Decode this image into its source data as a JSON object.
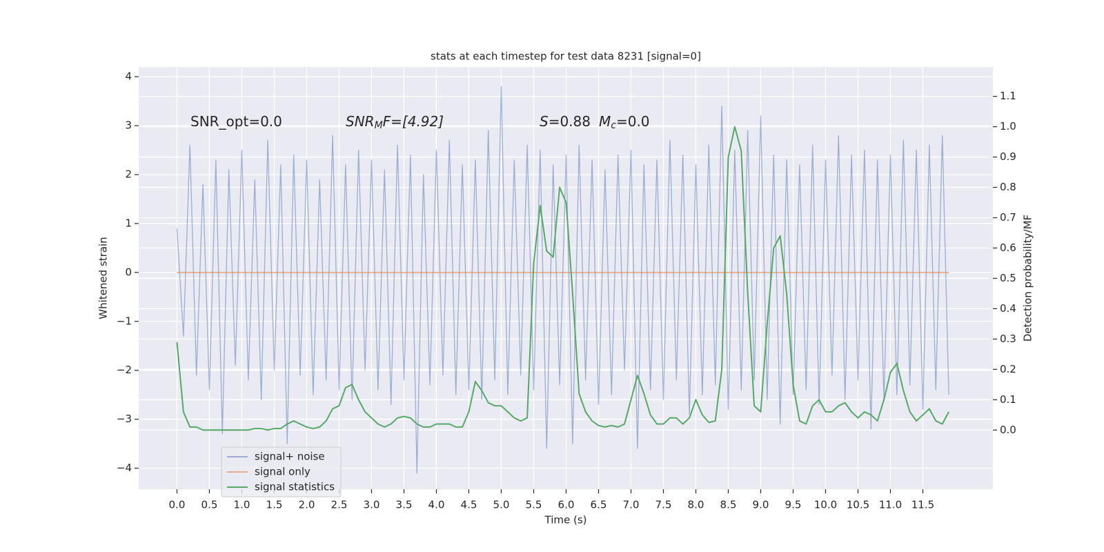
{
  "chart_data": {
    "type": "line",
    "title": "stats at each timestep for test data 8231 [signal=0]",
    "xlabel": "Time (s)",
    "ylabel": "Whitened strain",
    "y2label": "Detection probability/MF",
    "annotations": [
      [
        "SNR_opt=0.0"
      ],
      [
        "SNR",
        "M",
        "F=[4.92]"
      ],
      [
        "S",
        "=0.88",
        "M",
        "c",
        "=0.0"
      ]
    ],
    "x": [
      0,
      0.1,
      0.2,
      0.3,
      0.4,
      0.5,
      0.6,
      0.7,
      0.8,
      0.9,
      1,
      1.1,
      1.2,
      1.3,
      1.4,
      1.5,
      1.6,
      1.7,
      1.8,
      1.9,
      2,
      2.1,
      2.2,
      2.3,
      2.4,
      2.5,
      2.6,
      2.7,
      2.8,
      2.9,
      3,
      3.1,
      3.2,
      3.3,
      3.4,
      3.5,
      3.6,
      3.7,
      3.8,
      3.9,
      4,
      4.1,
      4.2,
      4.3,
      4.4,
      4.5,
      4.6,
      4.7,
      4.8,
      4.9,
      5,
      5.1,
      5.2,
      5.3,
      5.4,
      5.5,
      5.6,
      5.7,
      5.8,
      5.9,
      6,
      6.1,
      6.2,
      6.3,
      6.4,
      6.5,
      6.6,
      6.7,
      6.8,
      6.9,
      7,
      7.1,
      7.2,
      7.3,
      7.4,
      7.5,
      7.6,
      7.7,
      7.8,
      7.9,
      8,
      8.1,
      8.2,
      8.3,
      8.4,
      8.5,
      8.6,
      8.7,
      8.8,
      8.9,
      9,
      9.1,
      9.2,
      9.3,
      9.4,
      9.5,
      9.6,
      9.7,
      9.8,
      9.9,
      10,
      10.1,
      10.2,
      10.3,
      10.4,
      10.5,
      10.6,
      10.7,
      10.8,
      10.9,
      11,
      11.1,
      11.2,
      11.3,
      11.4,
      11.5,
      11.6,
      11.7,
      11.8,
      11.9
    ],
    "series": [
      {
        "name": "signal+ noise",
        "color": "#4c72b0",
        "values": [
          0.9,
          -1.3,
          2.6,
          -2.1,
          1.8,
          -2.4,
          2.3,
          -3.3,
          2.1,
          -1.9,
          2.5,
          -2.2,
          1.9,
          -2.6,
          2.7,
          -2.0,
          2.2,
          -3.5,
          2.4,
          -2.1,
          2.3,
          -2.5,
          1.9,
          -2.2,
          2.8,
          -2.4,
          2.2,
          -2.6,
          2.5,
          -2.0,
          2.3,
          -2.4,
          2.1,
          -2.7,
          2.6,
          -2.2,
          2.4,
          -4.1,
          2.0,
          -2.3,
          2.5,
          -2.1,
          2.7,
          -2.5,
          2.2,
          -2.4,
          2.3,
          -2.6,
          2.9,
          -2.2,
          3.8,
          -2.5,
          2.3,
          -2.1,
          2.6,
          -2.4,
          2.5,
          -3.6,
          2.2,
          -2.3,
          2.4,
          -3.5,
          2.6,
          -2.2,
          2.3,
          -2.7,
          2.1,
          -2.5,
          2.4,
          -2.0,
          2.5,
          -3.6,
          2.2,
          -2.4,
          2.3,
          -2.6,
          2.7,
          -2.2,
          2.4,
          -2.9,
          2.2,
          -2.5,
          2.6,
          -2.3,
          3.4,
          -2.8,
          2.5,
          -2.4,
          2.9,
          -2.2,
          3.2,
          -2.6,
          2.4,
          -3.1,
          2.3,
          -2.5,
          2.2,
          -2.4,
          2.6,
          -2.7,
          2.3,
          -2.1,
          2.8,
          -2.6,
          2.4,
          -2.2,
          2.5,
          -3.2,
          2.3,
          -2.6,
          2.4,
          -2.5,
          2.7,
          -2.3,
          2.5,
          -2.8,
          2.6,
          -2.4,
          2.8,
          -2.5
        ]
      },
      {
        "name": "signal only",
        "color": "#dd8452",
        "values": [
          0,
          0,
          0,
          0,
          0,
          0,
          0,
          0,
          0,
          0,
          0,
          0,
          0,
          0,
          0,
          0,
          0,
          0,
          0,
          0,
          0,
          0,
          0,
          0,
          0,
          0,
          0,
          0,
          0,
          0,
          0,
          0,
          0,
          0,
          0,
          0,
          0,
          0,
          0,
          0,
          0,
          0,
          0,
          0,
          0,
          0,
          0,
          0,
          0,
          0,
          0,
          0,
          0,
          0,
          0,
          0,
          0,
          0,
          0,
          0,
          0,
          0,
          0,
          0,
          0,
          0,
          0,
          0,
          0,
          0,
          0,
          0,
          0,
          0,
          0,
          0,
          0,
          0,
          0,
          0,
          0,
          0,
          0,
          0,
          0,
          0,
          0,
          0,
          0,
          0,
          0,
          0,
          0,
          0,
          0,
          0,
          0,
          0,
          0,
          0,
          0,
          0,
          0,
          0,
          0,
          0,
          0,
          0,
          0,
          0,
          0,
          0,
          0,
          0,
          0,
          0,
          0,
          0,
          0,
          0
        ]
      },
      {
        "name": "signal statistics",
        "color": "#55a868",
        "axis": "y2",
        "values": [
          0.29,
          0.06,
          0.01,
          0.01,
          0.0,
          0.0,
          0.0,
          0.0,
          0.0,
          0.0,
          0.0,
          0.0,
          0.005,
          0.005,
          0.0,
          0.005,
          0.005,
          0.02,
          0.03,
          0.02,
          0.01,
          0.005,
          0.01,
          0.03,
          0.07,
          0.08,
          0.14,
          0.15,
          0.1,
          0.06,
          0.04,
          0.02,
          0.01,
          0.02,
          0.04,
          0.045,
          0.04,
          0.02,
          0.01,
          0.01,
          0.02,
          0.02,
          0.02,
          0.01,
          0.01,
          0.06,
          0.16,
          0.13,
          0.09,
          0.08,
          0.08,
          0.06,
          0.04,
          0.03,
          0.04,
          0.55,
          0.74,
          0.59,
          0.57,
          0.8,
          0.75,
          0.45,
          0.12,
          0.06,
          0.03,
          0.015,
          0.01,
          0.015,
          0.01,
          0.02,
          0.1,
          0.18,
          0.12,
          0.05,
          0.02,
          0.02,
          0.04,
          0.04,
          0.02,
          0.04,
          0.1,
          0.05,
          0.025,
          0.03,
          0.2,
          0.9,
          1.0,
          0.92,
          0.45,
          0.08,
          0.06,
          0.35,
          0.6,
          0.64,
          0.45,
          0.15,
          0.03,
          0.02,
          0.08,
          0.1,
          0.06,
          0.06,
          0.08,
          0.09,
          0.06,
          0.04,
          0.06,
          0.05,
          0.03,
          0.1,
          0.19,
          0.22,
          0.13,
          0.06,
          0.03,
          0.05,
          0.07,
          0.03,
          0.02,
          0.06
        ]
      }
    ],
    "xlim": [
      -0.59,
      12.58
    ],
    "xticks": [
      {
        "value": 0,
        "label": "0.0"
      },
      {
        "value": 0.5,
        "label": "0.5"
      },
      {
        "value": 1,
        "label": "1.0"
      },
      {
        "value": 1.5,
        "label": "1.5"
      },
      {
        "value": 2,
        "label": "2.0"
      },
      {
        "value": 2.5,
        "label": "2.5"
      },
      {
        "value": 3,
        "label": "3.0"
      },
      {
        "value": 3.5,
        "label": "3.5"
      },
      {
        "value": 4,
        "label": "4.0"
      },
      {
        "value": 4.5,
        "label": "4.5"
      },
      {
        "value": 5,
        "label": "5.0"
      },
      {
        "value": 5.5,
        "label": "5.5"
      },
      {
        "value": 6,
        "label": "6.0"
      },
      {
        "value": 6.5,
        "label": "6.5"
      },
      {
        "value": 7,
        "label": "7.0"
      },
      {
        "value": 7.5,
        "label": "7.5"
      },
      {
        "value": 8,
        "label": "8.0"
      },
      {
        "value": 8.5,
        "label": "8.5"
      },
      {
        "value": 9,
        "label": "9.0"
      },
      {
        "value": 9.5,
        "label": "9.5"
      },
      {
        "value": 10,
        "label": "10.0"
      },
      {
        "value": 10.5,
        "label": "10.5"
      },
      {
        "value": 11,
        "label": "11.0"
      },
      {
        "value": 11.5,
        "label": "11.5"
      }
    ],
    "ylim": [
      -4.43,
      4.2
    ],
    "yticks": [
      {
        "value": -4,
        "label": "−4"
      },
      {
        "value": -3,
        "label": "−3"
      },
      {
        "value": -2,
        "label": "−2"
      },
      {
        "value": -1,
        "label": "−1"
      },
      0,
      1,
      2,
      3,
      4
    ],
    "y2lim": [
      -0.195,
      1.197
    ],
    "y2ticks": [
      {
        "value": 0,
        "label": "0.0"
      },
      {
        "value": 0.1,
        "label": "0.1"
      },
      {
        "value": 0.2,
        "label": "0.2"
      },
      {
        "value": 0.3,
        "label": "0.3"
      },
      {
        "value": 0.4,
        "label": "0.4"
      },
      {
        "value": 0.5,
        "label": "0.5"
      },
      {
        "value": 0.6,
        "label": "0.6"
      },
      {
        "value": 0.7,
        "label": "0.7"
      },
      {
        "value": 0.8,
        "label": "0.8"
      },
      {
        "value": 0.9,
        "label": "0.9"
      },
      {
        "value": 1,
        "label": "1.0"
      },
      {
        "value": 1.1,
        "label": "1.1"
      }
    ],
    "grid": true,
    "legend": "lower left"
  }
}
